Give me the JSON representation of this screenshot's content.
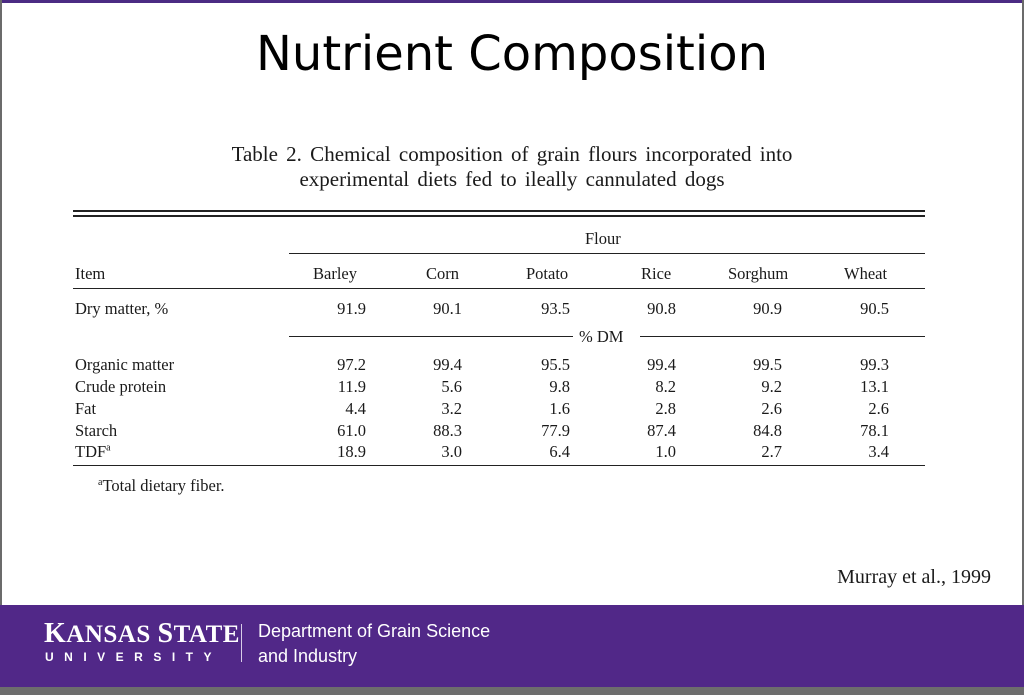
{
  "slide": {
    "title": "Nutrient Composition",
    "citation": "Murray et al., 1999"
  },
  "table": {
    "caption_line1": "Table 2. Chemical composition of grain flours incorporated into",
    "caption_line2": "experimental diets fed to ileally cannulated dogs",
    "group_header": "Flour",
    "item_header": "Item",
    "columns": [
      "Barley",
      "Corn",
      "Potato",
      "Rice",
      "Sorghum",
      "Wheat"
    ],
    "dry_matter": {
      "label": "Dry matter, %",
      "values": [
        "91.9",
        "90.1",
        "93.5",
        "90.8",
        "90.9",
        "90.5"
      ]
    },
    "unit_label": "% DM",
    "rows": [
      {
        "label": "Organic matter",
        "values": [
          "97.2",
          "99.4",
          "95.5",
          "99.4",
          "99.5",
          "99.3"
        ]
      },
      {
        "label": "Crude protein",
        "values": [
          "11.9",
          "5.6",
          "9.8",
          "8.2",
          "9.2",
          "13.1"
        ]
      },
      {
        "label": "Fat",
        "values": [
          "4.4",
          "3.2",
          "1.6",
          "2.8",
          "2.6",
          "2.6"
        ]
      },
      {
        "label": "Starch",
        "values": [
          "61.0",
          "88.3",
          "77.9",
          "87.4",
          "84.8",
          "78.1"
        ]
      },
      {
        "label": "TDF",
        "label_sup": "a",
        "values": [
          "18.9",
          "3.0",
          "6.4",
          "1.0",
          "2.7",
          "3.4"
        ]
      }
    ],
    "footnote_mark": "a",
    "footnote": "Total dietary fiber."
  },
  "footer": {
    "university_main_k": "K",
    "university_main_rest1": "ANSAS ",
    "university_main_s": "S",
    "university_main_rest2": "TATE",
    "university_sub": "UNIVERSITY",
    "department_line1": "Department of Grain Science",
    "department_line2": "and Industry",
    "background_color": "#512888"
  }
}
